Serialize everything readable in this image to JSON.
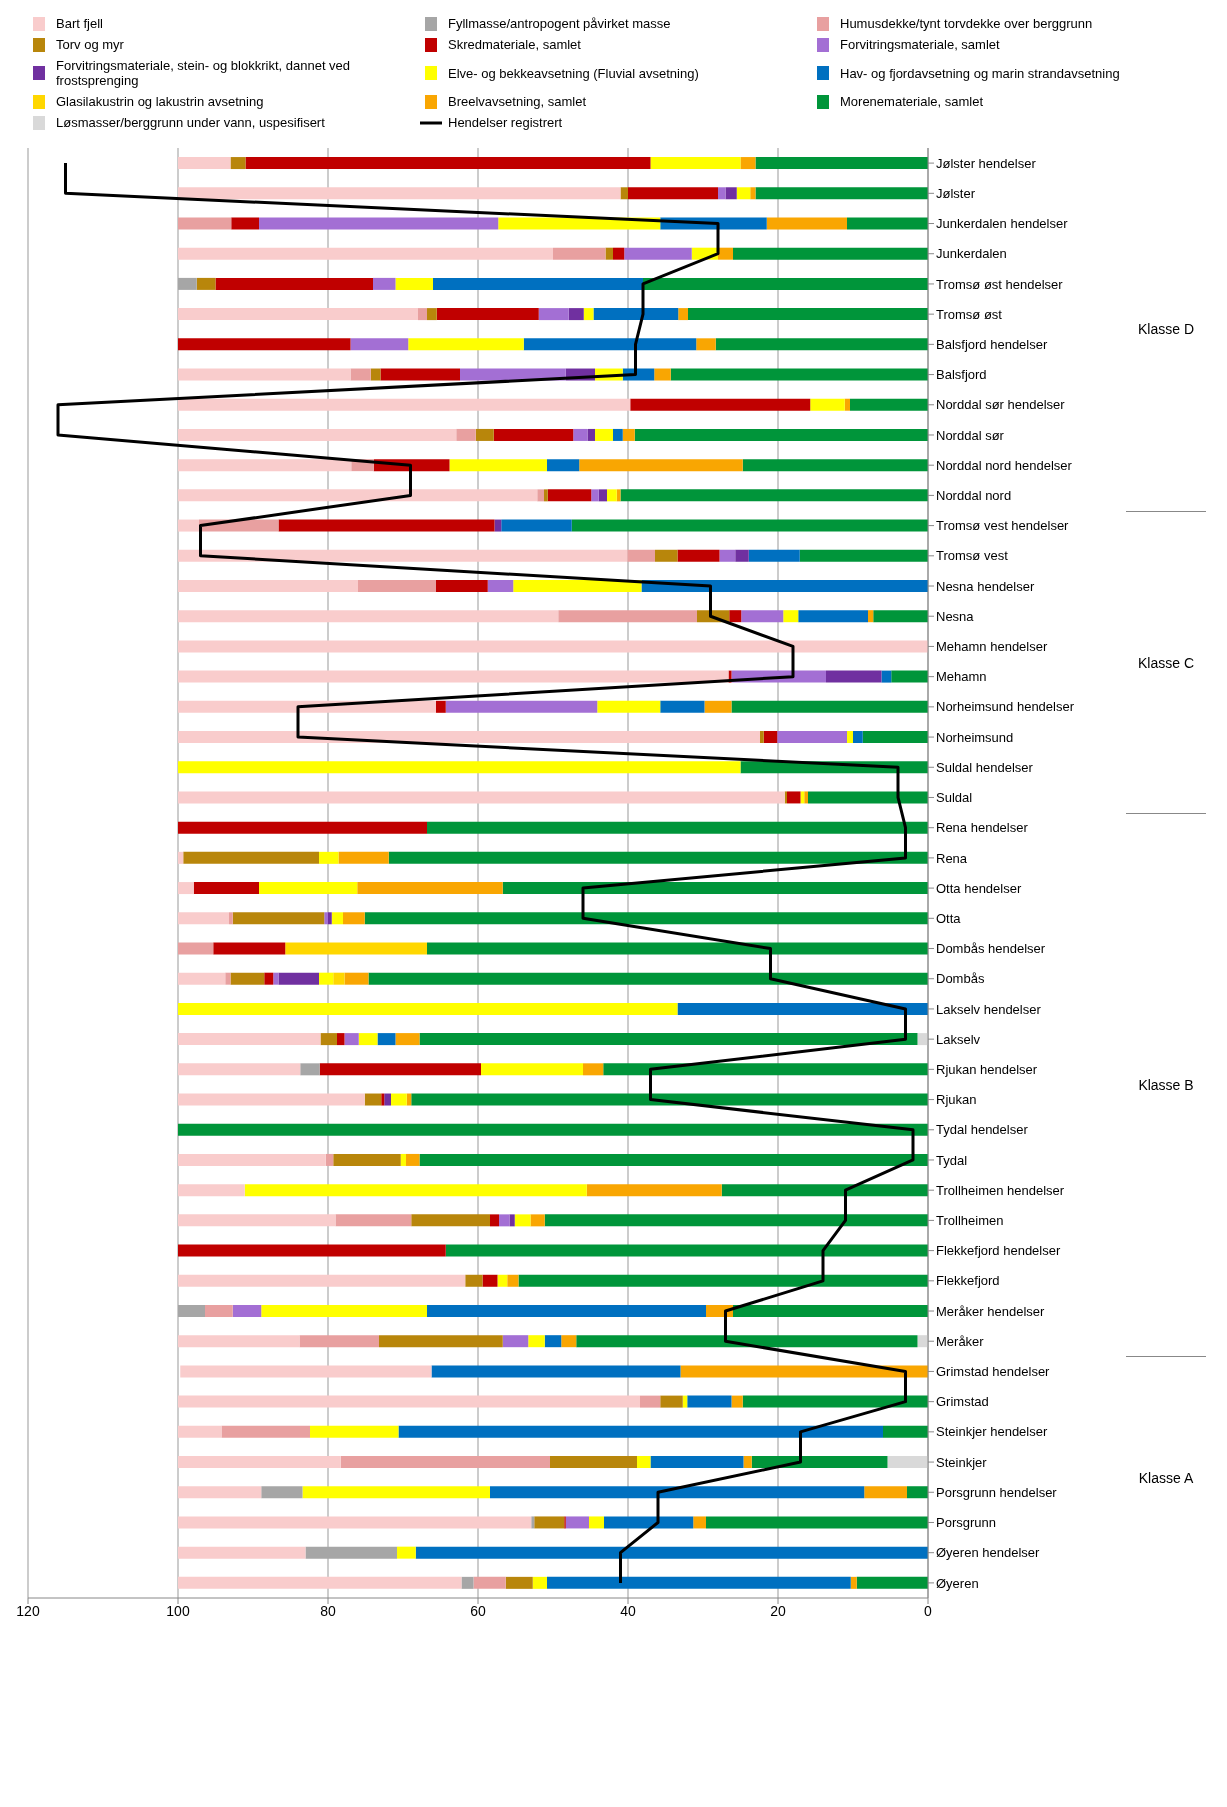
{
  "chart_data": {
    "type": "bar",
    "orientation": "horizontal",
    "stacked": true,
    "legend": "top",
    "grid": "x",
    "categories": [
      "Jølster hendelser",
      "Jølster",
      "Junkerdalen hendelser",
      "Junkerdalen",
      "Tromsø øst hendelser",
      "Tromsø øst",
      "Balsfjord hendelser",
      "Balsfjord",
      "Norddal sør hendelser",
      "Norddal sør",
      "Norddal nord hendelser",
      "Norddal nord",
      "Tromsø vest hendelser",
      "Tromsø vest",
      "Nesna hendelser",
      "Nesna",
      "Mehamn hendelser",
      "Mehamn",
      "Norheimsund hendelser",
      "Norheimsund",
      "Suldal hendelser",
      "Suldal",
      "Rena hendelser",
      "Rena",
      "Otta hendelser",
      "Otta",
      "Dombås hendelser",
      "Dombås",
      "Lakselv hendelser",
      "Lakselv",
      "Rjukan hendelser",
      "Rjukan",
      "Tydal hendelser",
      "Tydal",
      "Trollheimen hendelser",
      "Trollheimen",
      "Flekkefjord hendelser",
      "Flekkefjord",
      "Meråker hendelser",
      "Meråker",
      "Grimstad hendelser",
      "Grimstad",
      "Steinkjer hendelser",
      "Steinkjer",
      "Porsgrunn hendelser",
      "Porsgrunn",
      "Øyeren hendelser",
      "Øyeren"
    ],
    "xlim": [
      120,
      0
    ],
    "xticks": [
      0,
      20,
      40,
      60,
      80,
      100,
      120
    ],
    "annotations": [
      "Klasse D",
      "Klasse C",
      "Klasse B",
      "Klasse A"
    ],
    "series": [
      {
        "name": "Løsmasser/berggrunn under vann, uspesifisert",
        "color": "#d9d9d9",
        "values": [
          0,
          0,
          0,
          0,
          0,
          0,
          0,
          0,
          0,
          0,
          0,
          0,
          0,
          0,
          0,
          0,
          0,
          0,
          0,
          0,
          0,
          0,
          0,
          0,
          0,
          0,
          0,
          0,
          0,
          1.4,
          0,
          0,
          0,
          0,
          0,
          0,
          0,
          0,
          0,
          1.4,
          0,
          0,
          0,
          5.4,
          0,
          0,
          0,
          0
        ]
      },
      {
        "name": "Morenemateriale, samlet",
        "color": "#00953a",
        "values": [
          23,
          23,
          10.8,
          26,
          38,
          32,
          28.3,
          34.3,
          10.4,
          39.1,
          24.7,
          41,
          47.5,
          17.1,
          0,
          7.3,
          0,
          4.9,
          26.2,
          8.7,
          25,
          16,
          66.8,
          71.9,
          56.7,
          75.1,
          66.8,
          74.6,
          0,
          66.4,
          43.3,
          68.9,
          100,
          67.8,
          27.5,
          51.1,
          64.3,
          54.6,
          26,
          45.5,
          0,
          24.7,
          6,
          18.1,
          2.8,
          29.6,
          0,
          9.5
        ]
      },
      {
        "name": "Breelvavsetning, samlet",
        "color": "#f9a602",
        "values": [
          2,
          0.7,
          10.7,
          2,
          0,
          1.3,
          2.6,
          2.2,
          0.7,
          1.6,
          21.8,
          0.5,
          0,
          0,
          0,
          0.7,
          0,
          0,
          3.6,
          0,
          0,
          0.5,
          0,
          6.7,
          19.4,
          2.9,
          0,
          3.2,
          0,
          3.2,
          2.7,
          0.6,
          0,
          1.8,
          18,
          1.9,
          0,
          1.5,
          3.6,
          2,
          33,
          1.5,
          0,
          1.1,
          5.7,
          1.7,
          0,
          0.8
        ]
      },
      {
        "name": "Glasilakustrin og lakustrin avsetning",
        "color": "#ffd700",
        "values": [
          0,
          0,
          0,
          0,
          0,
          0,
          0,
          0,
          0,
          0,
          0,
          0,
          0,
          0,
          0,
          0,
          0,
          0,
          0,
          0,
          0,
          0,
          0,
          0,
          0,
          0,
          18.9,
          1.5,
          0,
          0,
          0,
          0,
          0,
          0,
          0,
          0,
          0,
          0,
          0,
          0,
          0,
          0,
          0,
          0,
          0,
          0,
          0,
          0
        ]
      },
      {
        "name": "Hav- og fjordavsetning og marin strandavsetning",
        "color": "#0070c0",
        "values": [
          0,
          0,
          14.2,
          0,
          28,
          11.3,
          23,
          4.2,
          0,
          1.3,
          4.3,
          0,
          9.4,
          6.8,
          38.2,
          9.3,
          0,
          1.3,
          5.9,
          1.3,
          0,
          0,
          0,
          0,
          0,
          0,
          0,
          0,
          33.4,
          2.4,
          0,
          0,
          0,
          0,
          0,
          0,
          0,
          0,
          37.2,
          2.2,
          33.2,
          5.9,
          64.6,
          12.4,
          49.9,
          11.9,
          68.3,
          40.5
        ]
      },
      {
        "name": "Elve- og bekkeavsetning (Fluvial avsetning)",
        "color": "#ffff00",
        "values": [
          12,
          1.8,
          21.6,
          3.5,
          5,
          1.3,
          15.4,
          3.7,
          4.6,
          2.4,
          13,
          1.3,
          0,
          0,
          17.1,
          2,
          0,
          0,
          8.4,
          0.8,
          75,
          0.5,
          0,
          2.6,
          13.1,
          1.5,
          0,
          1.9,
          66.6,
          2.5,
          13.6,
          2.1,
          0,
          0.7,
          45.6,
          2.1,
          0,
          1.3,
          22.1,
          2.2,
          0,
          0.6,
          11.8,
          1.8,
          25,
          2,
          2.5,
          1.9
        ]
      },
      {
        "name": "Forvitringsmateriale, stein- og blokkrikt, dannet ved frostsprenging",
        "color": "#7030a0",
        "values": [
          0,
          1.5,
          0,
          0,
          0,
          2,
          0,
          3.9,
          0,
          1,
          0,
          1.1,
          0.9,
          1.8,
          0,
          0,
          0,
          7.4,
          0,
          0,
          0,
          0,
          0,
          0,
          0,
          0.5,
          0,
          5.4,
          0,
          0,
          0,
          0.9,
          0,
          0,
          0,
          0.7,
          0,
          0,
          0,
          0,
          0,
          0,
          0,
          0,
          0,
          0,
          0,
          0
        ]
      },
      {
        "name": "Forvitringsmateriale, samlet",
        "color": "#a36fd4",
        "values": [
          0,
          1,
          31.9,
          9,
          3,
          4,
          7.7,
          14.1,
          0,
          1.9,
          0,
          1,
          0,
          2.1,
          3.4,
          5.6,
          0,
          12.6,
          20.2,
          9.3,
          0,
          0,
          0,
          0,
          0,
          0.5,
          0,
          0.7,
          0,
          1.9,
          0,
          0,
          0,
          0,
          0,
          1.4,
          0,
          0,
          3.8,
          3.4,
          0,
          0,
          0,
          0,
          0,
          3.1,
          0,
          0
        ]
      },
      {
        "name": "Skredmateriale, samlet",
        "color": "#c00000",
        "values": [
          54,
          12,
          3.7,
          1.5,
          21,
          13.6,
          23,
          10.6,
          24,
          10.6,
          10.1,
          5.8,
          28.8,
          5.6,
          6.9,
          1.6,
          0,
          0.4,
          1.3,
          1.8,
          0,
          1.8,
          33.2,
          0,
          8.7,
          0,
          9.6,
          1.2,
          0,
          1,
          21.5,
          0.4,
          0,
          0,
          0,
          1.2,
          35.7,
          2,
          0,
          0,
          0,
          0,
          0,
          0,
          0,
          0.2,
          0,
          0
        ]
      },
      {
        "name": "Torv og myr",
        "color": "#b8860b",
        "values": [
          2,
          1,
          0,
          1,
          2.5,
          1.3,
          0,
          1.3,
          0,
          2.4,
          0,
          0.5,
          0,
          3,
          0,
          4.3,
          0,
          0,
          0,
          0.5,
          0,
          0.3,
          0,
          18.1,
          0,
          12.2,
          0,
          4.5,
          0,
          2.2,
          0,
          2.2,
          0,
          9,
          0,
          10.5,
          0,
          2.3,
          0,
          16.5,
          0,
          3,
          0,
          11.6,
          0,
          4,
          0,
          3.6
        ]
      },
      {
        "name": "Humusdekke/tynt torvdekke over berggrunn",
        "color": "#e8a0a0",
        "values": [
          0,
          0,
          7.1,
          7,
          0,
          1.2,
          0,
          2.7,
          0,
          2.6,
          3,
          0.9,
          10.6,
          3.7,
          10.4,
          18.5,
          0,
          0,
          0,
          0,
          0,
          0,
          0,
          0,
          0,
          0.5,
          4.7,
          0.7,
          0,
          0,
          0,
          0,
          0,
          1,
          0,
          10.1,
          0,
          0,
          3.7,
          10.6,
          0,
          2.7,
          11.8,
          27.9,
          0,
          0,
          0,
          4.3
        ]
      },
      {
        "name": "Fyllmasse/antropogent påvirket masse",
        "color": "#a6a6a6",
        "values": [
          0,
          0,
          0,
          0,
          2.5,
          0,
          0,
          0,
          0,
          0,
          0,
          0,
          0,
          0,
          0,
          0,
          0,
          0,
          0,
          0,
          0,
          0,
          0,
          0,
          0,
          0,
          0,
          0,
          0,
          0,
          2.6,
          0,
          0,
          0,
          0,
          0,
          0,
          0,
          3.6,
          0,
          0,
          0,
          0,
          0,
          5.5,
          0.4,
          12.2,
          1.6
        ]
      },
      {
        "name": "Bart fjell",
        "color": "#f9cccc",
        "values": [
          7,
          59,
          0,
          50,
          0,
          32,
          0,
          23,
          60.3,
          37.1,
          23.1,
          47.9,
          2.8,
          59.9,
          24,
          50.7,
          100,
          73.4,
          34.4,
          77.6,
          0,
          80.9,
          0,
          0.7,
          2.1,
          6.8,
          0,
          6.3,
          0,
          19,
          16.3,
          24.9,
          0,
          19.7,
          8.9,
          21,
          0,
          38.3,
          0,
          16.2,
          33.5,
          61.6,
          5.8,
          21.7,
          11.1,
          47.1,
          17,
          37.8
        ]
      },
      {
        "name": "Hendelser registrert",
        "type": "line",
        "color": "#000000",
        "values": [
          115,
          115,
          28,
          28,
          38,
          38,
          39,
          39,
          116,
          116,
          69,
          69,
          97,
          97,
          29,
          29,
          18,
          18,
          84,
          84,
          4,
          4,
          3,
          3,
          46,
          46,
          21,
          21,
          3,
          3,
          37,
          37,
          2,
          2,
          11,
          11,
          14,
          14,
          27,
          27,
          3,
          3,
          17,
          17,
          36,
          36,
          41,
          41
        ]
      }
    ]
  }
}
